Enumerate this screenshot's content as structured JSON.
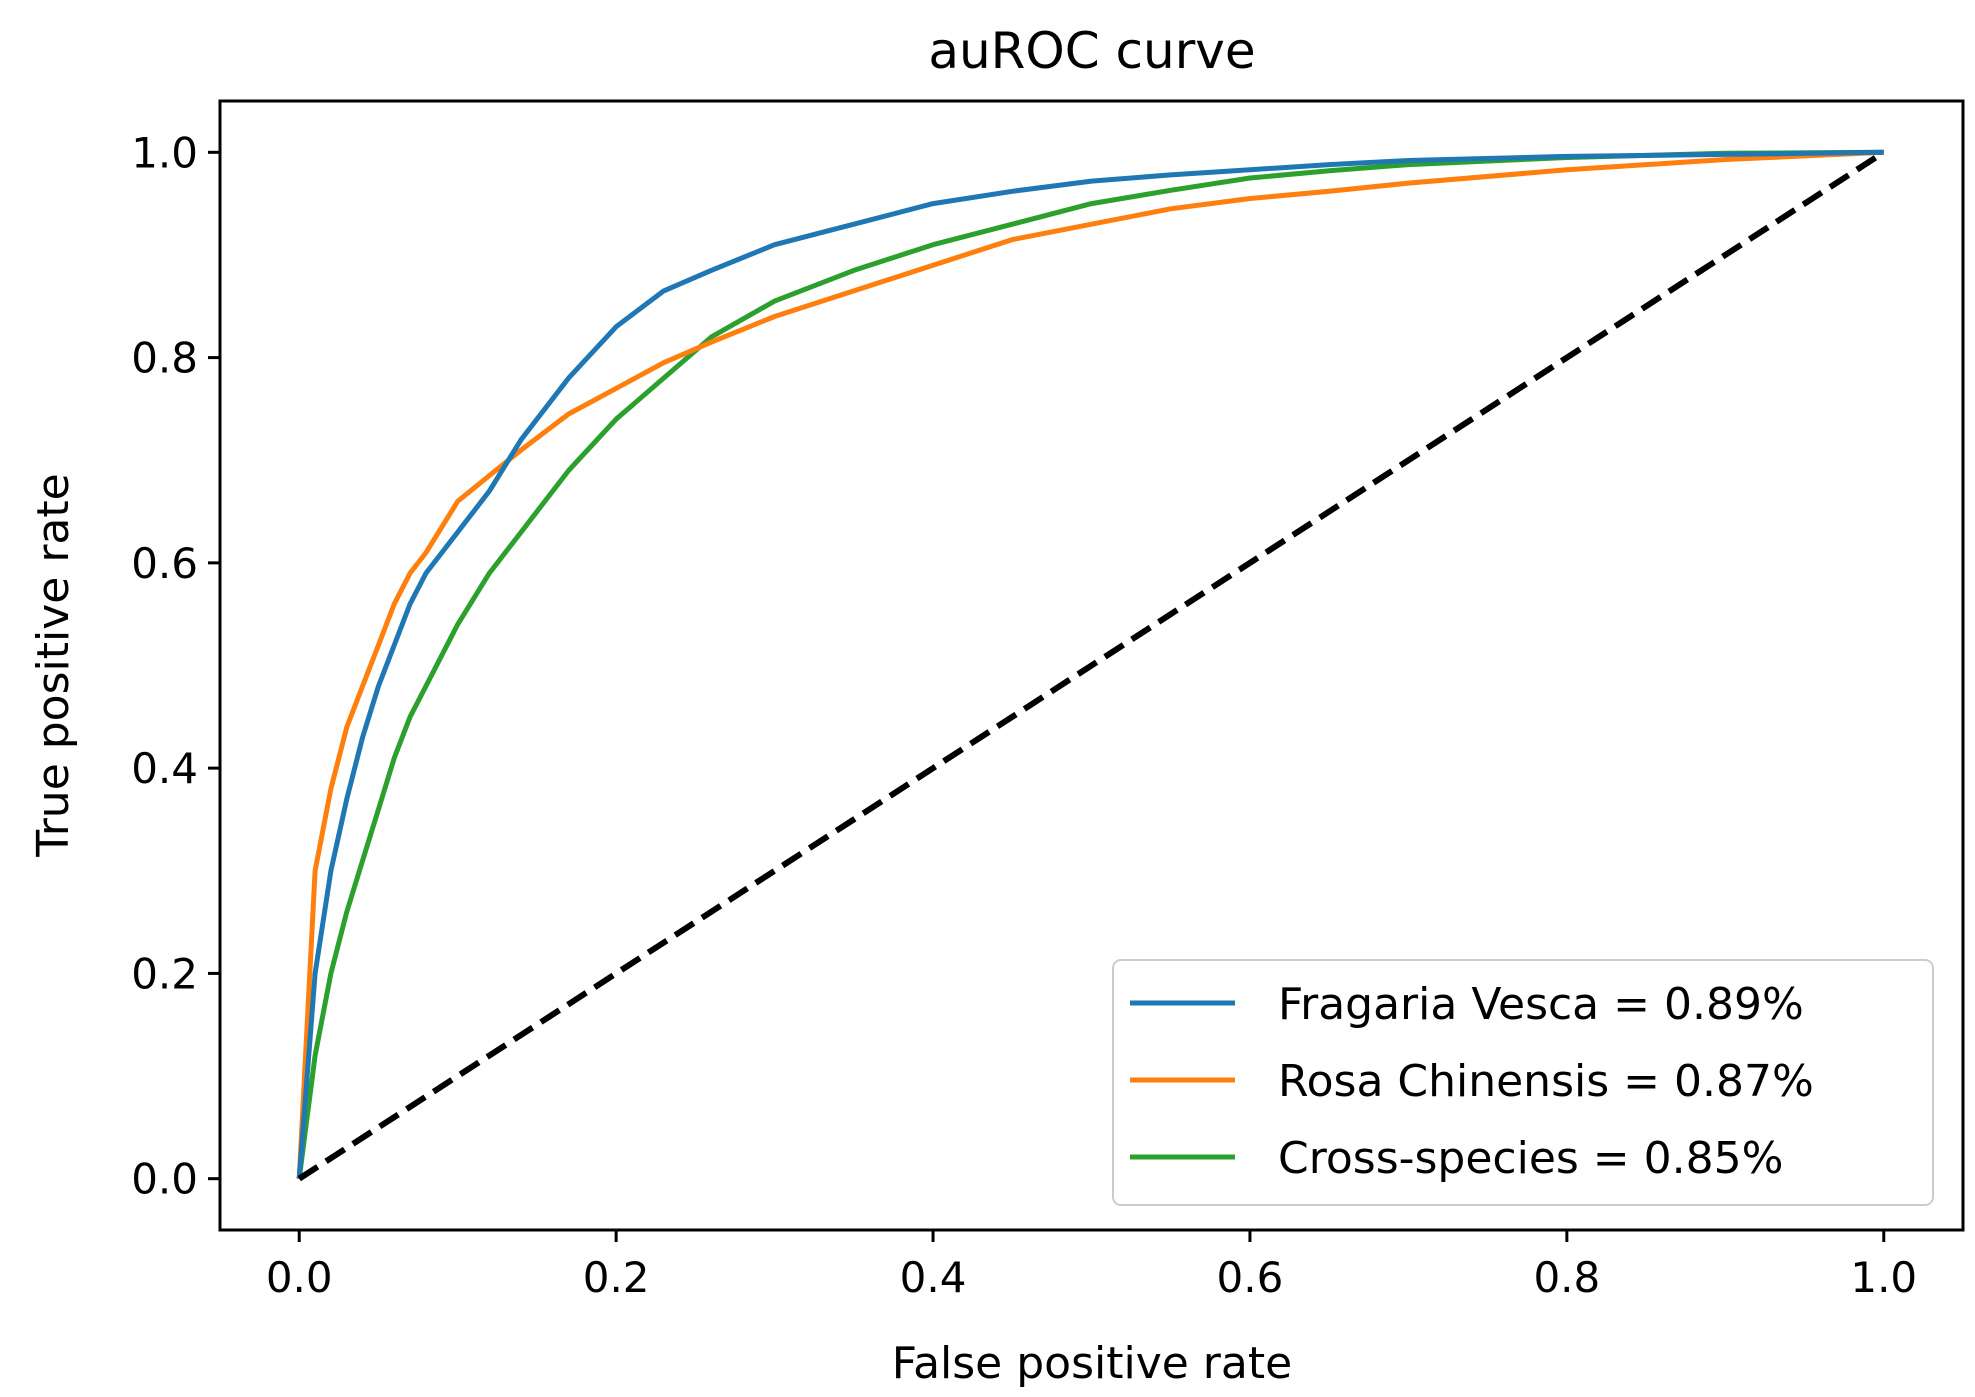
{
  "chart_data": {
    "type": "line",
    "title": "auROC curve",
    "xlabel": "False positive rate",
    "ylabel": "True positive rate",
    "xlim": [
      -0.05,
      1.05
    ],
    "ylim": [
      -0.05,
      1.05
    ],
    "xticks": [
      0.0,
      0.2,
      0.4,
      0.6,
      0.8,
      1.0
    ],
    "yticks": [
      0.0,
      0.2,
      0.4,
      0.6,
      0.8,
      1.0
    ],
    "xtick_labels": [
      "0.0",
      "0.2",
      "0.4",
      "0.6",
      "0.8",
      "1.0"
    ],
    "ytick_labels": [
      "0.0",
      "0.2",
      "0.4",
      "0.6",
      "0.8",
      "1.0"
    ],
    "grid": false,
    "legend_position": "lower-right",
    "series": [
      {
        "name": "Fragaria Vesca = 0.89%",
        "color": "#1f77b4",
        "x": [
          0.0,
          0.01,
          0.02,
          0.03,
          0.04,
          0.05,
          0.06,
          0.07,
          0.08,
          0.1,
          0.12,
          0.14,
          0.17,
          0.2,
          0.23,
          0.26,
          0.3,
          0.35,
          0.4,
          0.45,
          0.5,
          0.55,
          0.6,
          0.65,
          0.7,
          0.8,
          0.9,
          1.0
        ],
        "y": [
          0.0,
          0.2,
          0.3,
          0.37,
          0.43,
          0.48,
          0.52,
          0.56,
          0.59,
          0.63,
          0.67,
          0.72,
          0.78,
          0.83,
          0.865,
          0.885,
          0.91,
          0.93,
          0.95,
          0.962,
          0.972,
          0.978,
          0.983,
          0.988,
          0.992,
          0.996,
          0.998,
          1.0
        ]
      },
      {
        "name": "Rosa Chinensis = 0.87%",
        "color": "#ff7f0e",
        "x": [
          0.0,
          0.01,
          0.02,
          0.03,
          0.04,
          0.05,
          0.06,
          0.07,
          0.08,
          0.1,
          0.12,
          0.14,
          0.17,
          0.2,
          0.23,
          0.26,
          0.3,
          0.35,
          0.4,
          0.45,
          0.5,
          0.55,
          0.6,
          0.65,
          0.7,
          0.8,
          0.9,
          1.0
        ],
        "y": [
          0.0,
          0.3,
          0.38,
          0.44,
          0.48,
          0.52,
          0.56,
          0.59,
          0.61,
          0.66,
          0.685,
          0.71,
          0.745,
          0.77,
          0.795,
          0.815,
          0.84,
          0.865,
          0.89,
          0.915,
          0.93,
          0.945,
          0.955,
          0.962,
          0.97,
          0.983,
          0.993,
          1.0
        ]
      },
      {
        "name": "Cross-species = 0.85%",
        "color": "#2ca02c",
        "x": [
          0.0,
          0.01,
          0.02,
          0.03,
          0.04,
          0.05,
          0.06,
          0.07,
          0.08,
          0.1,
          0.12,
          0.14,
          0.17,
          0.2,
          0.23,
          0.26,
          0.3,
          0.35,
          0.4,
          0.45,
          0.5,
          0.55,
          0.6,
          0.65,
          0.7,
          0.8,
          0.9,
          1.0
        ],
        "y": [
          0.0,
          0.12,
          0.2,
          0.26,
          0.31,
          0.36,
          0.41,
          0.45,
          0.48,
          0.54,
          0.59,
          0.63,
          0.69,
          0.74,
          0.78,
          0.82,
          0.855,
          0.885,
          0.91,
          0.93,
          0.95,
          0.963,
          0.975,
          0.982,
          0.988,
          0.995,
          0.999,
          1.0
        ]
      },
      {
        "name": "",
        "color": "#000000",
        "dashed": true,
        "x": [
          0.0,
          1.0
        ],
        "y": [
          0.0,
          1.0
        ]
      }
    ]
  }
}
